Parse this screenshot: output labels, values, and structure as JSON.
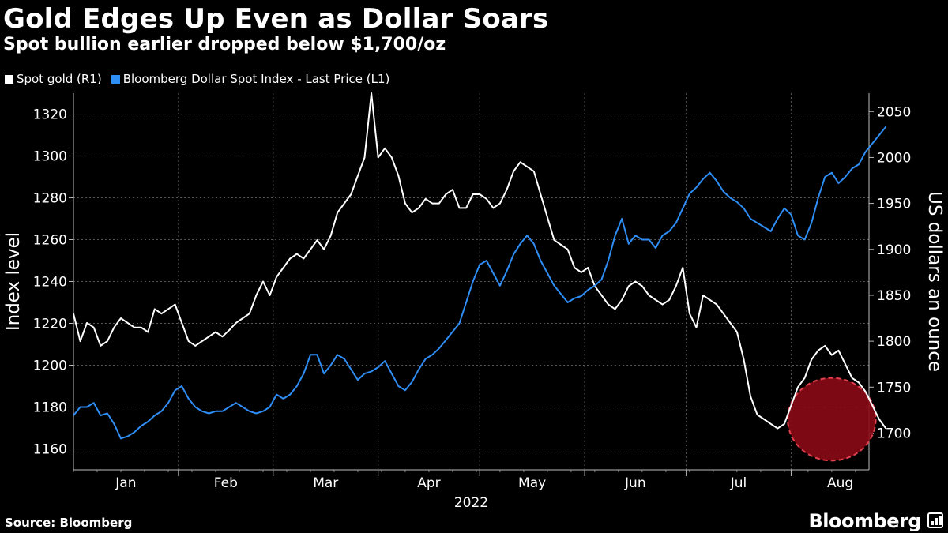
{
  "title": "Gold Edges Up Even as Dollar Soars",
  "subtitle": "Spot bullion earlier dropped below $1,700/oz",
  "legend": [
    {
      "label": "Spot gold (R1)",
      "color": "#ffffff"
    },
    {
      "label": "Bloomberg Dollar Spot Index - Last Price (L1)",
      "color": "#2f8ef6"
    }
  ],
  "source": "Source: Bloomberg",
  "brand": "Bloomberg",
  "colors": {
    "gold": "#ffffff",
    "dollar": "#2f8ef6",
    "highlight": "#8b0a17",
    "highlight_stroke": "#e0404d",
    "grid": "#555555"
  },
  "chart_data": {
    "type": "line",
    "title": "Gold Edges Up Even as Dollar Soars",
    "xlabel": "2022",
    "ylabel_left": "Index level",
    "ylabel_right": "US dollars an ounce",
    "x_ticks": [
      "Jan",
      "Feb",
      "Mar",
      "Apr",
      "May",
      "Jun",
      "Jul",
      "Aug"
    ],
    "y_left": {
      "min": 1150,
      "max": 1330,
      "ticks": [
        1160,
        1180,
        1200,
        1220,
        1240,
        1260,
        1280,
        1300,
        1320
      ]
    },
    "y_right": {
      "min": 1660,
      "max": 2070,
      "ticks": [
        1700,
        1750,
        1800,
        1850,
        1900,
        1950,
        2000,
        2050
      ]
    },
    "x_range_days": [
      0,
      235
    ],
    "annotation": {
      "type": "ellipse",
      "x_center_day": 224,
      "y_center_gold": 1715,
      "x_radius_days": 13,
      "y_radius_gold": 45,
      "note": "Spot gold dipped below $1,700/oz"
    },
    "series": [
      {
        "name": "Spot gold (R1)",
        "axis": "right",
        "points": [
          [
            0,
            1830
          ],
          [
            2,
            1800
          ],
          [
            4,
            1820
          ],
          [
            6,
            1815
          ],
          [
            8,
            1795
          ],
          [
            10,
            1800
          ],
          [
            12,
            1815
          ],
          [
            14,
            1825
          ],
          [
            16,
            1820
          ],
          [
            18,
            1815
          ],
          [
            20,
            1815
          ],
          [
            22,
            1810
          ],
          [
            24,
            1835
          ],
          [
            26,
            1830
          ],
          [
            28,
            1835
          ],
          [
            30,
            1840
          ],
          [
            32,
            1820
          ],
          [
            34,
            1800
          ],
          [
            36,
            1795
          ],
          [
            38,
            1800
          ],
          [
            40,
            1805
          ],
          [
            42,
            1810
          ],
          [
            44,
            1805
          ],
          [
            46,
            1812
          ],
          [
            48,
            1820
          ],
          [
            50,
            1825
          ],
          [
            52,
            1830
          ],
          [
            54,
            1850
          ],
          [
            56,
            1865
          ],
          [
            58,
            1850
          ],
          [
            60,
            1870
          ],
          [
            62,
            1880
          ],
          [
            64,
            1890
          ],
          [
            66,
            1895
          ],
          [
            68,
            1890
          ],
          [
            70,
            1900
          ],
          [
            72,
            1910
          ],
          [
            74,
            1900
          ],
          [
            76,
            1915
          ],
          [
            78,
            1940
          ],
          [
            80,
            1950
          ],
          [
            82,
            1960
          ],
          [
            84,
            1980
          ],
          [
            86,
            2000
          ],
          [
            88,
            2070
          ],
          [
            90,
            2000
          ],
          [
            92,
            2010
          ],
          [
            94,
            2000
          ],
          [
            96,
            1980
          ],
          [
            98,
            1950
          ],
          [
            100,
            1940
          ],
          [
            102,
            1945
          ],
          [
            104,
            1955
          ],
          [
            106,
            1950
          ],
          [
            108,
            1950
          ],
          [
            110,
            1960
          ],
          [
            112,
            1965
          ],
          [
            114,
            1945
          ],
          [
            116,
            1945
          ],
          [
            118,
            1960
          ],
          [
            120,
            1960
          ],
          [
            122,
            1955
          ],
          [
            124,
            1945
          ],
          [
            126,
            1950
          ],
          [
            128,
            1965
          ],
          [
            130,
            1985
          ],
          [
            132,
            1995
          ],
          [
            134,
            1990
          ],
          [
            136,
            1985
          ],
          [
            138,
            1960
          ],
          [
            140,
            1935
          ],
          [
            142,
            1910
          ],
          [
            144,
            1905
          ],
          [
            146,
            1900
          ],
          [
            148,
            1880
          ],
          [
            150,
            1875
          ],
          [
            152,
            1880
          ],
          [
            154,
            1860
          ],
          [
            156,
            1850
          ],
          [
            158,
            1840
          ],
          [
            160,
            1835
          ],
          [
            162,
            1845
          ],
          [
            164,
            1860
          ],
          [
            166,
            1865
          ],
          [
            168,
            1860
          ],
          [
            170,
            1850
          ],
          [
            172,
            1845
          ],
          [
            174,
            1840
          ],
          [
            176,
            1845
          ],
          [
            178,
            1860
          ],
          [
            180,
            1880
          ],
          [
            182,
            1830
          ],
          [
            184,
            1815
          ],
          [
            186,
            1850
          ],
          [
            188,
            1845
          ],
          [
            190,
            1840
          ],
          [
            192,
            1830
          ],
          [
            194,
            1820
          ],
          [
            196,
            1810
          ],
          [
            198,
            1780
          ],
          [
            200,
            1740
          ],
          [
            202,
            1720
          ],
          [
            204,
            1715
          ],
          [
            206,
            1710
          ],
          [
            208,
            1705
          ],
          [
            210,
            1710
          ],
          [
            212,
            1730
          ],
          [
            214,
            1750
          ],
          [
            216,
            1760
          ],
          [
            218,
            1780
          ],
          [
            220,
            1790
          ],
          [
            222,
            1795
          ],
          [
            224,
            1785
          ],
          [
            226,
            1790
          ],
          [
            228,
            1775
          ],
          [
            230,
            1760
          ],
          [
            232,
            1755
          ],
          [
            234,
            1745
          ],
          [
            236,
            1730
          ],
          [
            238,
            1715
          ],
          [
            240,
            1705
          ]
        ]
      },
      {
        "name": "Bloomberg Dollar Spot Index - Last Price (L1)",
        "axis": "left",
        "points": [
          [
            0,
            1176
          ],
          [
            2,
            1180
          ],
          [
            4,
            1180
          ],
          [
            6,
            1182
          ],
          [
            8,
            1176
          ],
          [
            10,
            1177
          ],
          [
            12,
            1172
          ],
          [
            14,
            1165
          ],
          [
            16,
            1166
          ],
          [
            18,
            1168
          ],
          [
            20,
            1171
          ],
          [
            22,
            1173
          ],
          [
            24,
            1176
          ],
          [
            26,
            1178
          ],
          [
            28,
            1182
          ],
          [
            30,
            1188
          ],
          [
            32,
            1190
          ],
          [
            34,
            1184
          ],
          [
            36,
            1180
          ],
          [
            38,
            1178
          ],
          [
            40,
            1177
          ],
          [
            42,
            1178
          ],
          [
            44,
            1178
          ],
          [
            46,
            1180
          ],
          [
            48,
            1182
          ],
          [
            50,
            1180
          ],
          [
            52,
            1178
          ],
          [
            54,
            1177
          ],
          [
            56,
            1178
          ],
          [
            58,
            1180
          ],
          [
            60,
            1186
          ],
          [
            62,
            1184
          ],
          [
            64,
            1186
          ],
          [
            66,
            1190
          ],
          [
            68,
            1196
          ],
          [
            70,
            1205
          ],
          [
            72,
            1205
          ],
          [
            74,
            1196
          ],
          [
            76,
            1200
          ],
          [
            78,
            1205
          ],
          [
            80,
            1203
          ],
          [
            82,
            1198
          ],
          [
            84,
            1193
          ],
          [
            86,
            1196
          ],
          [
            88,
            1197
          ],
          [
            90,
            1199
          ],
          [
            92,
            1202
          ],
          [
            94,
            1196
          ],
          [
            96,
            1190
          ],
          [
            98,
            1188
          ],
          [
            100,
            1192
          ],
          [
            102,
            1198
          ],
          [
            104,
            1203
          ],
          [
            106,
            1205
          ],
          [
            108,
            1208
          ],
          [
            110,
            1212
          ],
          [
            112,
            1216
          ],
          [
            114,
            1220
          ],
          [
            116,
            1230
          ],
          [
            118,
            1240
          ],
          [
            120,
            1248
          ],
          [
            122,
            1250
          ],
          [
            124,
            1244
          ],
          [
            126,
            1238
          ],
          [
            128,
            1245
          ],
          [
            130,
            1253
          ],
          [
            132,
            1258
          ],
          [
            134,
            1262
          ],
          [
            136,
            1258
          ],
          [
            138,
            1250
          ],
          [
            140,
            1244
          ],
          [
            142,
            1238
          ],
          [
            144,
            1234
          ],
          [
            146,
            1230
          ],
          [
            148,
            1232
          ],
          [
            150,
            1233
          ],
          [
            152,
            1236
          ],
          [
            154,
            1238
          ],
          [
            156,
            1241
          ],
          [
            158,
            1250
          ],
          [
            160,
            1262
          ],
          [
            162,
            1270
          ],
          [
            164,
            1258
          ],
          [
            166,
            1262
          ],
          [
            168,
            1260
          ],
          [
            170,
            1260
          ],
          [
            172,
            1256
          ],
          [
            174,
            1262
          ],
          [
            176,
            1264
          ],
          [
            178,
            1268
          ],
          [
            180,
            1275
          ],
          [
            182,
            1282
          ],
          [
            184,
            1285
          ],
          [
            186,
            1289
          ],
          [
            188,
            1292
          ],
          [
            190,
            1288
          ],
          [
            192,
            1283
          ],
          [
            194,
            1280
          ],
          [
            196,
            1278
          ],
          [
            198,
            1275
          ],
          [
            200,
            1270
          ],
          [
            202,
            1268
          ],
          [
            204,
            1266
          ],
          [
            206,
            1264
          ],
          [
            208,
            1270
          ],
          [
            210,
            1275
          ],
          [
            212,
            1272
          ],
          [
            214,
            1262
          ],
          [
            216,
            1260
          ],
          [
            218,
            1268
          ],
          [
            220,
            1280
          ],
          [
            222,
            1290
          ],
          [
            224,
            1292
          ],
          [
            226,
            1287
          ],
          [
            228,
            1290
          ],
          [
            230,
            1294
          ],
          [
            232,
            1296
          ],
          [
            234,
            1302
          ],
          [
            236,
            1306
          ],
          [
            238,
            1310
          ],
          [
            240,
            1314
          ]
        ]
      }
    ]
  }
}
